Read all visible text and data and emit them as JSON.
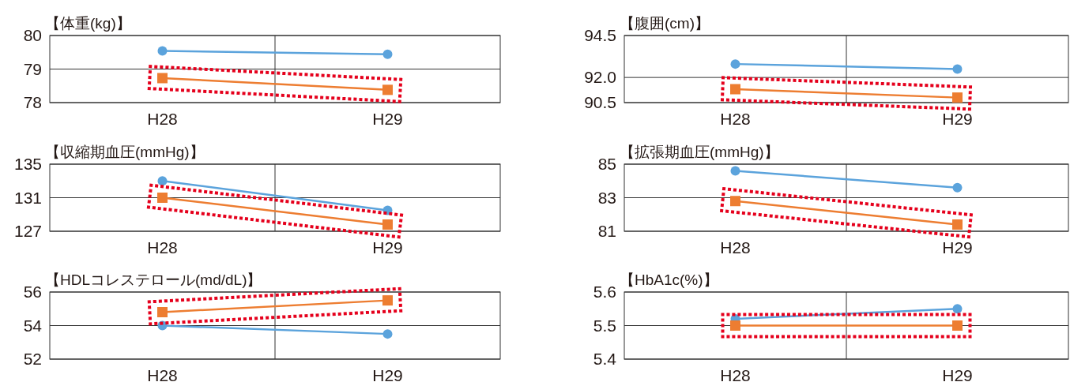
{
  "chart_data": [
    {
      "type": "line",
      "title": "【体重(kg)】",
      "categories": [
        "H28",
        "H29"
      ],
      "ylim": [
        78,
        80
      ],
      "yticks": [
        78,
        79,
        80
      ],
      "grid": true,
      "series": [
        {
          "color": "#5ba3dc",
          "marker": "circle",
          "values": [
            79.54,
            79.44
          ]
        },
        {
          "color": "#ed7d31",
          "marker": "square",
          "values": [
            78.73,
            78.38
          ]
        }
      ]
    },
    {
      "type": "line",
      "title": "【腹囲(cm)】",
      "categories": [
        "H28",
        "H29"
      ],
      "ylim": [
        90.5,
        94.5
      ],
      "yticks": [
        {
          "value": 90.5,
          "label": "90.5"
        },
        {
          "value": 92,
          "label": "92.0"
        },
        {
          "value": 94.5,
          "label": "94.5"
        }
      ],
      "grid": true,
      "series": [
        {
          "color": "#5ba3dc",
          "marker": "circle",
          "values": [
            92.8,
            92.5
          ]
        },
        {
          "color": "#ed7d31",
          "marker": "square",
          "values": [
            91.3,
            90.8
          ]
        }
      ]
    },
    {
      "type": "line",
      "title": "【収縮期血圧(mmHg)】",
      "categories": [
        "H28",
        "H29"
      ],
      "ylim": [
        127,
        135
      ],
      "yticks": [
        127,
        131,
        135
      ],
      "grid": true,
      "series": [
        {
          "color": "#5ba3dc",
          "marker": "circle",
          "values": [
            133.0,
            129.5
          ]
        },
        {
          "color": "#ed7d31",
          "marker": "square",
          "values": [
            131.0,
            127.8
          ]
        }
      ]
    },
    {
      "type": "line",
      "title": "【拡張期血圧(mmHg)】",
      "categories": [
        "H28",
        "H29"
      ],
      "ylim": [
        81,
        85
      ],
      "yticks": [
        81,
        83,
        85
      ],
      "grid": true,
      "series": [
        {
          "color": "#5ba3dc",
          "marker": "circle",
          "values": [
            84.6,
            83.6
          ]
        },
        {
          "color": "#ed7d31",
          "marker": "square",
          "values": [
            82.8,
            81.4
          ]
        }
      ]
    },
    {
      "type": "line",
      "title": "【HDLコレステロール(md/dL)】",
      "categories": [
        "H28",
        "H29"
      ],
      "ylim": [
        52,
        56
      ],
      "yticks": [
        52,
        54,
        56
      ],
      "grid": true,
      "series": [
        {
          "color": "#5ba3dc",
          "marker": "circle",
          "values": [
            54.0,
            53.5
          ]
        },
        {
          "color": "#ed7d31",
          "marker": "square",
          "values": [
            54.8,
            55.5
          ]
        }
      ]
    },
    {
      "type": "line",
      "title": "【HbA1c(%)】",
      "categories": [
        "H28",
        "H29"
      ],
      "ylim": [
        5.4,
        5.6
      ],
      "yticks": [
        5.4,
        5.5,
        5.6
      ],
      "grid": true,
      "series": [
        {
          "color": "#5ba3dc",
          "marker": "circle",
          "values": [
            5.52,
            5.55
          ]
        },
        {
          "color": "#ed7d31",
          "marker": "square",
          "values": [
            5.5,
            5.5
          ]
        }
      ]
    }
  ]
}
